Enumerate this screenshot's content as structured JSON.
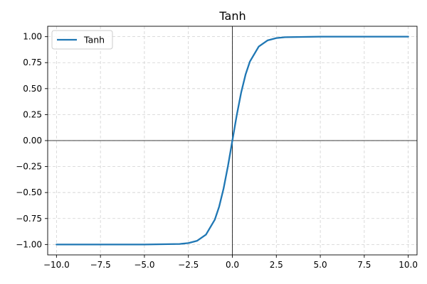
{
  "chart_data": {
    "type": "line",
    "title": "Tanh",
    "xlabel": "",
    "ylabel": "",
    "xlim": [
      -10.5,
      10.5
    ],
    "ylim": [
      -1.1,
      1.1
    ],
    "grid": true,
    "grid_style": "dashed",
    "legend_position": "top-left",
    "reference_lines": {
      "x": 0,
      "y": 0
    },
    "xticks": [
      -10.0,
      -7.5,
      -5.0,
      -2.5,
      0.0,
      2.5,
      5.0,
      7.5,
      10.0
    ],
    "xtick_labels": [
      "−10.0",
      "−7.5",
      "−5.0",
      "−2.5",
      "0.0",
      "2.5",
      "5.0",
      "7.5",
      "10.0"
    ],
    "yticks": [
      -1.0,
      -0.75,
      -0.5,
      -0.25,
      0.0,
      0.25,
      0.5,
      0.75,
      1.0
    ],
    "ytick_labels": [
      "−1.00",
      "−0.75",
      "−0.50",
      "−0.25",
      "0.00",
      "0.25",
      "0.50",
      "0.75",
      "1.00"
    ],
    "series": [
      {
        "name": "Tanh",
        "color": "#1f77b4",
        "x": [
          -10,
          -5,
          -3,
          -2.5,
          -2,
          -1.5,
          -1,
          -0.75,
          -0.5,
          -0.25,
          0,
          0.25,
          0.5,
          0.75,
          1,
          1.5,
          2,
          2.5,
          3,
          5,
          10
        ],
        "y": [
          -1.0,
          -0.9999,
          -0.995,
          -0.9866,
          -0.964,
          -0.9051,
          -0.7616,
          -0.6351,
          -0.4621,
          -0.2449,
          0.0,
          0.2449,
          0.4621,
          0.6351,
          0.7616,
          0.9051,
          0.964,
          0.9866,
          0.995,
          0.9999,
          1.0
        ]
      }
    ]
  }
}
